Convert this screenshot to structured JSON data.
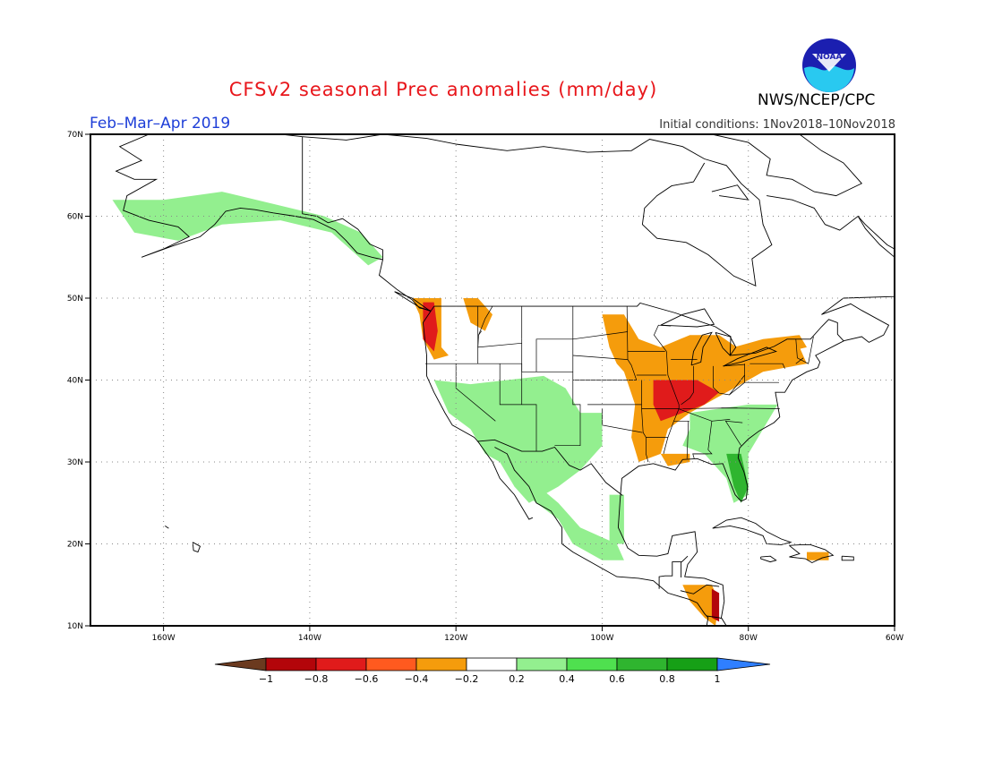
{
  "title": "CFSv2 seasonal Prec anomalies (mm/day)",
  "period": "Feb–Mar–Apr 2019",
  "initial_conditions": "Initial conditions: 1Nov2018–10Nov2018",
  "agency": "NWS/NCEP/CPC",
  "logo_text": "NOAA",
  "lon_labels": [
    "160W",
    "140W",
    "120W",
    "100W",
    "80W",
    "60W"
  ],
  "lat_labels": [
    "70N",
    "60N",
    "50N",
    "40N",
    "30N",
    "20N",
    "10N"
  ],
  "colorbar": {
    "labels": [
      "−1",
      "−0.8",
      "−0.6",
      "−0.4",
      "−0.2",
      "0.2",
      "0.4",
      "0.6",
      "0.8",
      "1"
    ],
    "colors": [
      "#6b3a1f",
      "#b3050a",
      "#e01b1b",
      "#ff5a1f",
      "#f59c0c",
      "#ffffff",
      "#93ef8f",
      "#4fe04f",
      "#2fb52f",
      "#16a016",
      "#2f7fff"
    ]
  },
  "anomaly_regions": [
    {
      "name": "pacific-northwest-dry",
      "category": "-0.4",
      "color": "#f59c0c",
      "points": [
        [
          -126,
          50
        ],
        [
          -122,
          50
        ],
        [
          -122,
          44
        ],
        [
          -121,
          43
        ],
        [
          -123,
          42.5
        ],
        [
          -124.5,
          45
        ],
        [
          -125,
          48
        ]
      ]
    },
    {
      "name": "pacific-northwest-strong-dry",
      "category": "-0.6",
      "color": "#e01b1b",
      "points": [
        [
          -124.5,
          49.5
        ],
        [
          -123,
          49.5
        ],
        [
          -122.5,
          46
        ],
        [
          -123,
          43.5
        ],
        [
          -124.5,
          45
        ]
      ]
    },
    {
      "name": "idaho-dry",
      "category": "-0.2",
      "color": "#f59c0c",
      "points": [
        [
          -119,
          50
        ],
        [
          -117,
          50
        ],
        [
          -115,
          48
        ],
        [
          -116,
          46
        ],
        [
          -118,
          47
        ]
      ]
    },
    {
      "name": "midwest-dry",
      "category": "-0.4",
      "color": "#f59c0c",
      "points": [
        [
          -100,
          48
        ],
        [
          -97,
          48
        ],
        [
          -95,
          45
        ],
        [
          -92,
          44
        ],
        [
          -88,
          45.5
        ],
        [
          -84,
          45.5
        ],
        [
          -80,
          43
        ],
        [
          -77,
          43
        ],
        [
          -73,
          44
        ],
        [
          -72,
          42
        ],
        [
          -78,
          41
        ],
        [
          -81,
          39.5
        ],
        [
          -84,
          38
        ],
        [
          -88,
          36
        ],
        [
          -91,
          34
        ],
        [
          -92,
          31
        ],
        [
          -95,
          30
        ],
        [
          -96,
          33
        ],
        [
          -95.5,
          37
        ],
        [
          -97,
          41
        ],
        [
          -98,
          42
        ],
        [
          -99,
          44
        ]
      ]
    },
    {
      "name": "ozarks-ohio-valley-dry",
      "category": "-0.6",
      "color": "#e01b1b",
      "points": [
        [
          -93,
          40
        ],
        [
          -87,
          40
        ],
        [
          -84,
          38.5
        ],
        [
          -86,
          37
        ],
        [
          -89,
          36
        ],
        [
          -92,
          35
        ],
        [
          -93,
          37
        ]
      ]
    },
    {
      "name": "great-lakes-east-dry",
      "category": "-0.4",
      "color": "#f59c0c",
      "points": [
        [
          -82,
          44
        ],
        [
          -78,
          45
        ],
        [
          -73,
          45.5
        ],
        [
          -72,
          44
        ],
        [
          -77,
          43
        ],
        [
          -80,
          42.5
        ]
      ]
    },
    {
      "name": "louisiana-dry",
      "category": "-0.4",
      "color": "#f59c0c",
      "points": [
        [
          -92,
          31
        ],
        [
          -88,
          31
        ],
        [
          -88,
          30
        ],
        [
          -91,
          29.5
        ]
      ]
    },
    {
      "name": "southwest-wet",
      "category": "0.2",
      "color": "#93ef8f",
      "points": [
        [
          -123,
          40
        ],
        [
          -118,
          39.5
        ],
        [
          -113,
          40
        ],
        [
          -108,
          40.5
        ],
        [
          -105,
          39
        ],
        [
          -103,
          36
        ],
        [
          -100,
          36
        ],
        [
          -100,
          32
        ],
        [
          -103,
          29
        ],
        [
          -106,
          27
        ],
        [
          -110,
          25
        ],
        [
          -112,
          27
        ],
        [
          -114,
          30
        ],
        [
          -116,
          31
        ],
        [
          -118,
          34
        ],
        [
          -121,
          36
        ]
      ]
    },
    {
      "name": "mexico-wet",
      "category": "0.2",
      "color": "#93ef8f",
      "points": [
        [
          -112,
          27
        ],
        [
          -109,
          25
        ],
        [
          -106,
          23
        ],
        [
          -104,
          20
        ],
        [
          -100,
          18
        ],
        [
          -97,
          18
        ],
        [
          -98,
          20
        ],
        [
          -103,
          22
        ],
        [
          -106,
          25
        ],
        [
          -110,
          28
        ]
      ]
    },
    {
      "name": "gulf-coast-texas-wet",
      "category": "0.2",
      "color": "#93ef8f",
      "points": [
        [
          -99,
          26
        ],
        [
          -97,
          26
        ],
        [
          -97,
          20
        ],
        [
          -99,
          20
        ]
      ]
    },
    {
      "name": "southeast-wet",
      "category": "0.2",
      "color": "#93ef8f",
      "points": [
        [
          -88,
          36
        ],
        [
          -80,
          37
        ],
        [
          -76,
          37
        ],
        [
          -78,
          34
        ],
        [
          -80,
          31
        ],
        [
          -80,
          26
        ],
        [
          -82,
          25
        ],
        [
          -83,
          28
        ],
        [
          -86,
          31
        ],
        [
          -89,
          32
        ],
        [
          -88,
          34
        ]
      ]
    },
    {
      "name": "florida-wet",
      "category": "0.6",
      "color": "#2fb52f",
      "points": [
        [
          -83,
          31
        ],
        [
          -81,
          31
        ],
        [
          -80,
          27
        ],
        [
          -81,
          25
        ],
        [
          -82,
          27
        ]
      ]
    },
    {
      "name": "alaska-wet",
      "category": "0.2",
      "color": "#93ef8f",
      "points": [
        [
          -167,
          62
        ],
        [
          -160,
          62
        ],
        [
          -152,
          63
        ],
        [
          -145,
          61.5
        ],
        [
          -138,
          60
        ],
        [
          -133,
          58
        ],
        [
          -130,
          55
        ],
        [
          -132,
          54
        ],
        [
          -137,
          58
        ],
        [
          -144,
          59.5
        ],
        [
          -152,
          59
        ],
        [
          -158,
          57
        ],
        [
          -164,
          58
        ]
      ]
    },
    {
      "name": "central-america-dry",
      "category": "-0.4",
      "color": "#f59c0c",
      "points": [
        [
          -89,
          15
        ],
        [
          -85,
          15
        ],
        [
          -84,
          13
        ],
        [
          -84.5,
          10
        ],
        [
          -86,
          11
        ],
        [
          -88,
          13
        ]
      ]
    },
    {
      "name": "central-america-strong-dry",
      "category": "-0.8",
      "color": "#b3050a",
      "points": [
        [
          -85,
          14.5
        ],
        [
          -84,
          14
        ],
        [
          -84,
          10.5
        ],
        [
          -85,
          11
        ]
      ]
    },
    {
      "name": "hispaniola-dry",
      "category": "-0.4",
      "color": "#f59c0c",
      "points": [
        [
          -72,
          19
        ],
        [
          -69,
          19
        ],
        [
          -69,
          18
        ],
        [
          -72,
          18
        ]
      ]
    }
  ]
}
